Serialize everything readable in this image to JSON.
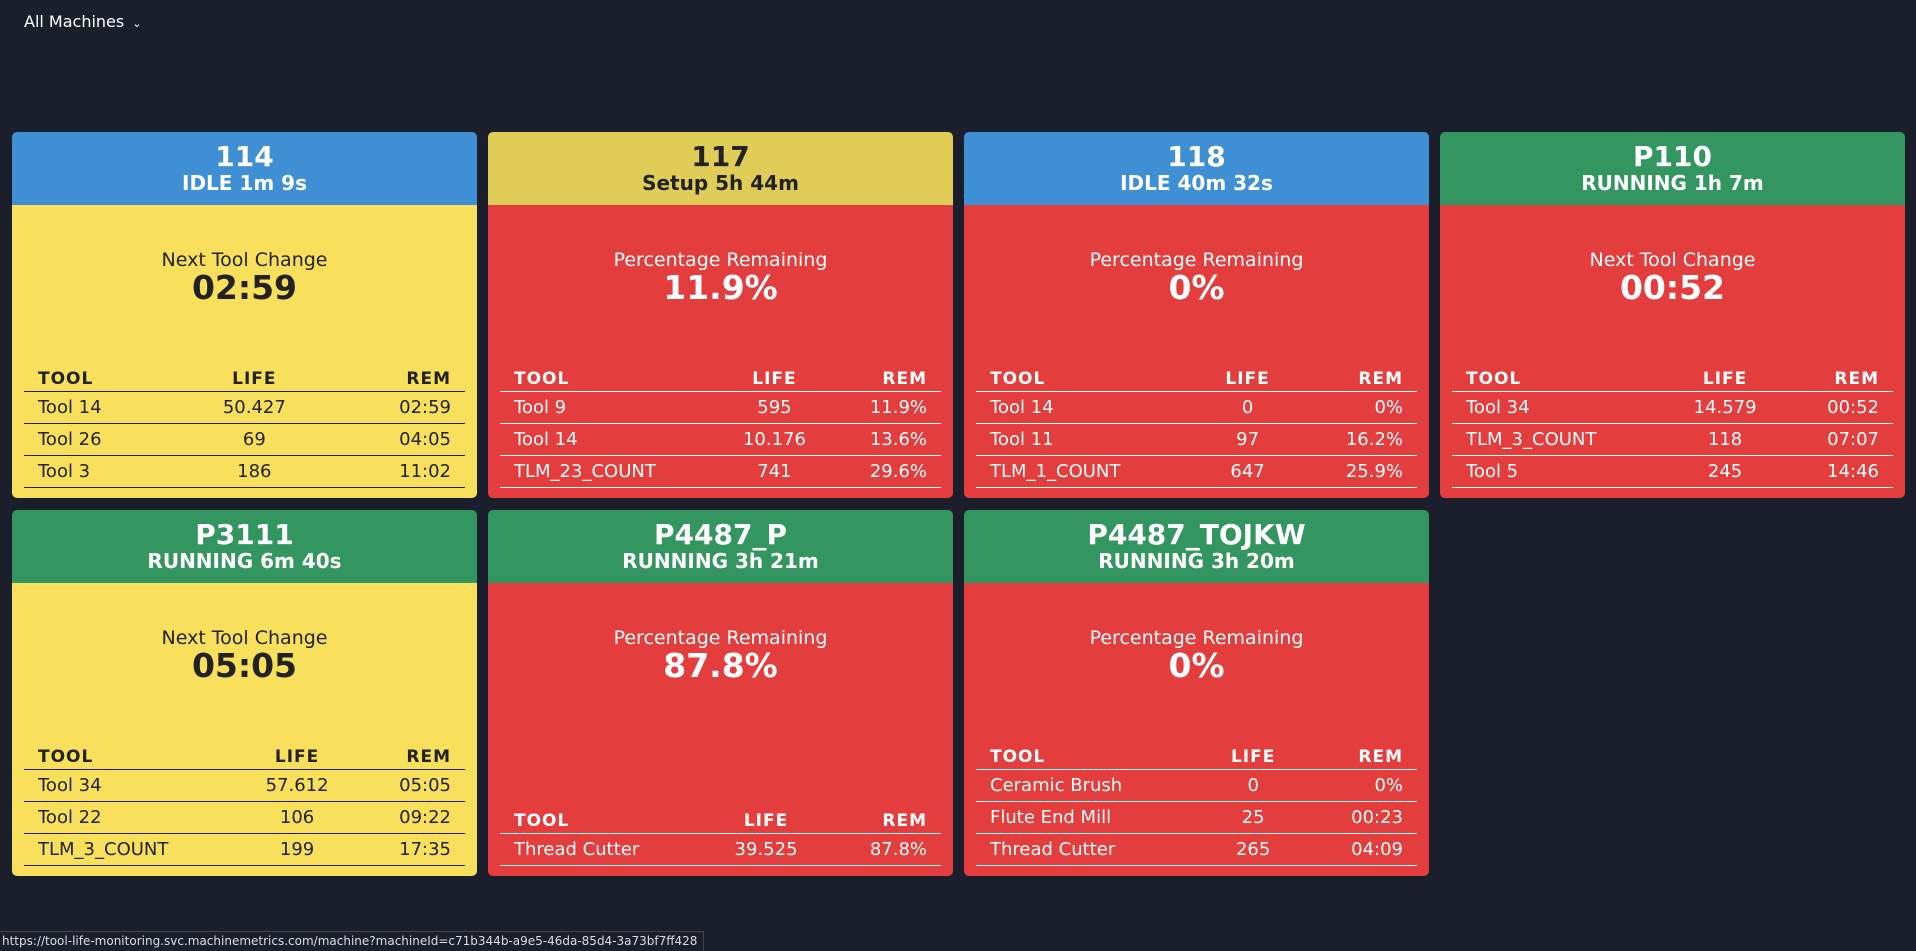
{
  "toolbar": {
    "filter": "All Machines"
  },
  "columns": [
    "TOOL",
    "LIFE",
    "REM"
  ],
  "cards": [
    {
      "id": "114",
      "status": "IDLE 1m 9s",
      "header_color": "#3f8fd4",
      "body_color": "#f8df5c",
      "metric_label": "Next Tool Change",
      "metric_value": "02:59",
      "rows": [
        [
          "Tool 14",
          "50.427",
          "02:59"
        ],
        [
          "Tool 26",
          "69",
          "04:05"
        ],
        [
          "Tool 3",
          "186",
          "11:02"
        ]
      ]
    },
    {
      "id": "117",
      "status": "Setup 5h 44m",
      "header_color": "#e0cd58",
      "body_color": "#e33d3d",
      "metric_label": "Percentage Remaining",
      "metric_value": "11.9%",
      "rows": [
        [
          "Tool 9",
          "595",
          "11.9%"
        ],
        [
          "Tool 14",
          "10.176",
          "13.6%"
        ],
        [
          "TLM_23_COUNT",
          "741",
          "29.6%"
        ]
      ]
    },
    {
      "id": "118",
      "status": "IDLE 40m 32s",
      "header_color": "#3f8fd4",
      "body_color": "#e33d3d",
      "metric_label": "Percentage Remaining",
      "metric_value": "0%",
      "rows": [
        [
          "Tool 14",
          "0",
          "0%"
        ],
        [
          "Tool 11",
          "97",
          "16.2%"
        ],
        [
          "TLM_1_COUNT",
          "647",
          "25.9%"
        ]
      ]
    },
    {
      "id": "P110",
      "status": "RUNNING 1h 7m",
      "header_color": "#339660",
      "body_color": "#e33d3d",
      "metric_label": "Next Tool Change",
      "metric_value": "00:52",
      "rows": [
        [
          "Tool 34",
          "14.579",
          "00:52"
        ],
        [
          "TLM_3_COUNT",
          "118",
          "07:07"
        ],
        [
          "Tool 5",
          "245",
          "14:46"
        ]
      ]
    },
    {
      "id": "P3111",
      "status": "RUNNING 6m 40s",
      "header_color": "#339660",
      "body_color": "#f8df5c",
      "metric_label": "Next Tool Change",
      "metric_value": "05:05",
      "rows": [
        [
          "Tool 34",
          "57.612",
          "05:05"
        ],
        [
          "Tool 22",
          "106",
          "09:22"
        ],
        [
          "TLM_3_COUNT",
          "199",
          "17:35"
        ]
      ]
    },
    {
      "id": "P4487_P",
      "status": "RUNNING 3h 21m",
      "header_color": "#339660",
      "body_color": "#e33d3d",
      "metric_label": "Percentage Remaining",
      "metric_value": "87.8%",
      "rows": [
        [
          "Thread Cutter",
          "39.525",
          "87.8%"
        ]
      ]
    },
    {
      "id": "P4487_TOJKW",
      "status": "RUNNING 3h 20m",
      "header_color": "#339660",
      "body_color": "#e33d3d",
      "metric_label": "Percentage Remaining",
      "metric_value": "0%",
      "rows": [
        [
          "Ceramic Brush",
          "0",
          "0%"
        ],
        [
          "Flute End Mill",
          "25",
          "00:23"
        ],
        [
          "Thread Cutter",
          "265",
          "04:09"
        ]
      ]
    }
  ],
  "status_bar": {
    "url": "https://tool-life-monitoring.svc.machinemetrics.com/machine?machineId=c71b344b-a9e5-46da-85d4-3a73bf7ff428"
  }
}
